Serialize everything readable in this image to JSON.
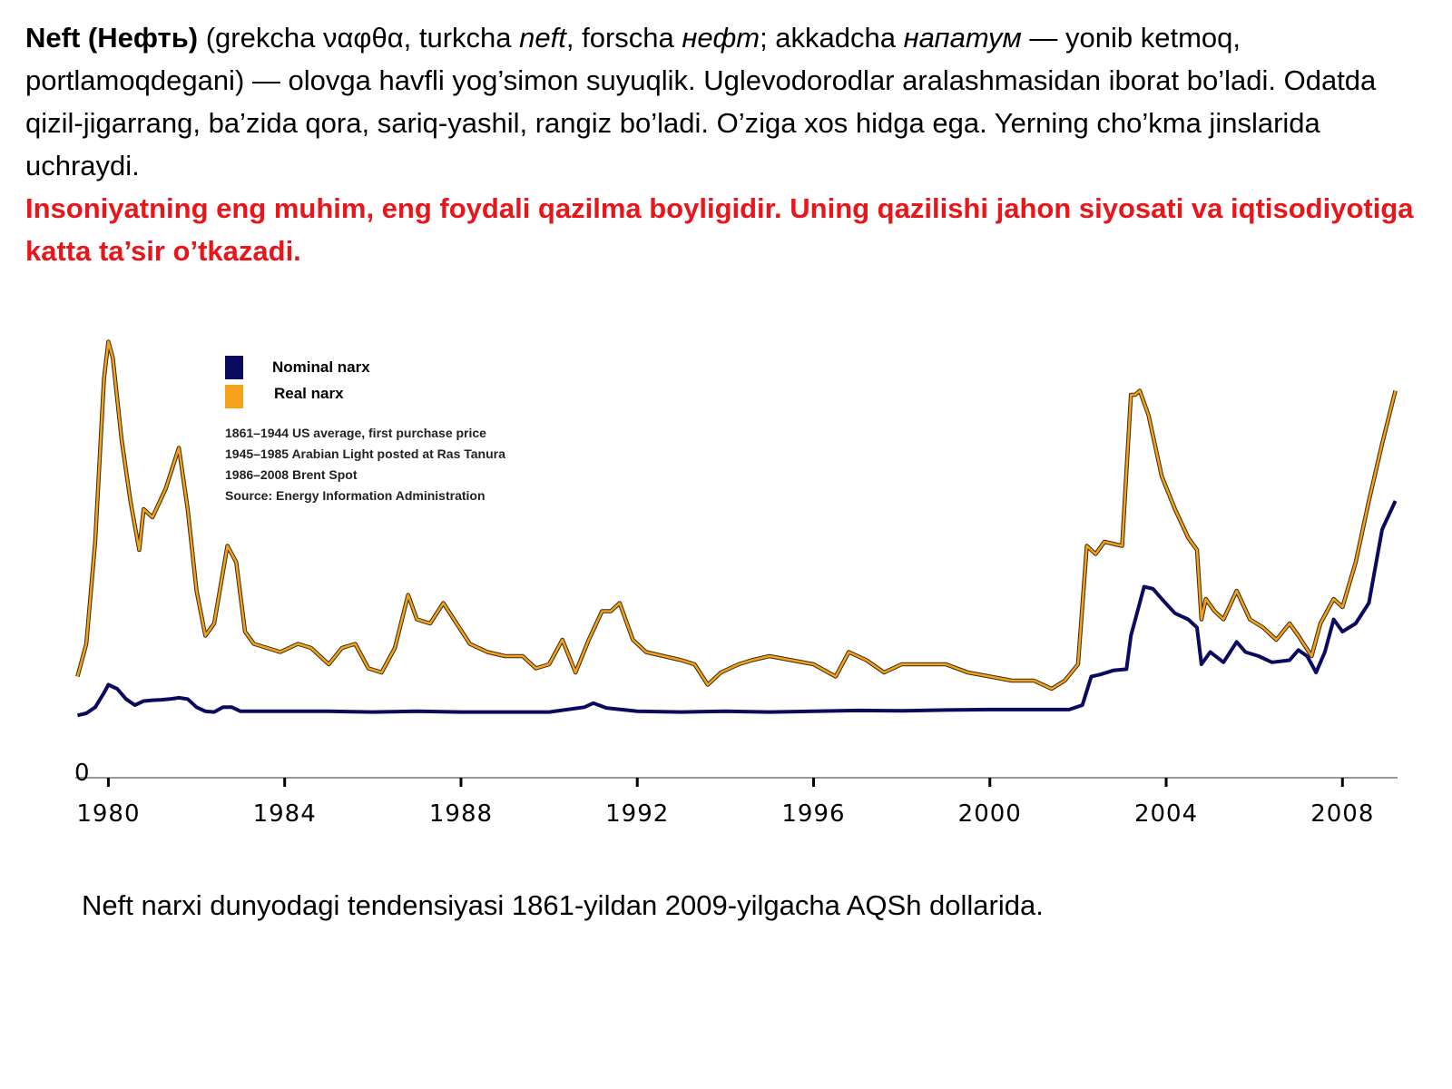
{
  "intro": {
    "term": "Neft (Нефть)",
    "p1": " (grekcha ναφθα, turkcha ",
    "i1": "neft",
    "p2": ", forscha ",
    "i2": "нефт",
    "p3": "; akkadcha ",
    "i3": "напатум",
    "p4": " — yonib ketmoq, portlamoqdegani) — olovga havfli yog’simon suyuqlik. Uglevodorodlar aralashmasidan iborat bo’ladi. Odatda qizil-jigarrang, ba’zida qora, sariq-yashil, rangiz bo’ladi. O’ziga xos hidga ega. Yerning cho’kma jinslarida uchraydi.",
    "highlight": "Insoniyatning eng muhim, eng foydali qazilma boyligidir. Uning qazilishi jahon siyosati va iqtisodiyotiga katta ta’sir o’tkazadi.",
    "highlight_color": "#e8151b"
  },
  "caption": "Neft narxi dunyodagi tendensiyasi 1861-yildan 2009-yilgacha AQSh dollarida.",
  "chart_data": {
    "type": "line",
    "title": "",
    "xlabel": "",
    "ylabel": "",
    "xlim": [
      1979.25,
      2009.25
    ],
    "ylim": [
      0,
      100
    ],
    "x_ticks": [
      1980,
      1984,
      1988,
      1992,
      1996,
      2000,
      2004,
      2008
    ],
    "x_tick_labels": [
      "1980",
      "1984",
      "1988",
      "1992",
      "1996",
      "2000",
      "2004",
      "2008"
    ],
    "y_tick_labels": [
      "0"
    ],
    "grid": false,
    "legend_position": "top-left",
    "notes": [
      "1861–1944 US average, first purchase price",
      "1945–1985 Arabian Light posted at Ras Tanura",
      "1986–2008 Brent Spot",
      "Source: Energy Information Administration"
    ],
    "series": [
      {
        "name": "Nominal narx",
        "color": "#0a0a5e",
        "x": [
          1979.3,
          1979.5,
          1979.7,
          1979.9,
          1980.0,
          1980.2,
          1980.4,
          1980.6,
          1980.8,
          1981.0,
          1981.2,
          1981.4,
          1981.6,
          1981.8,
          1982.0,
          1982.2,
          1982.4,
          1982.6,
          1982.8,
          1983.0,
          1984.0,
          1985.0,
          1986.0,
          1987.0,
          1988.0,
          1989.0,
          1990.0,
          1990.8,
          1991.0,
          1991.3,
          1992.0,
          1993.0,
          1994.0,
          1995.0,
          1996.0,
          1997.0,
          1998.0,
          1999.0,
          2000.0,
          2001.0,
          2001.8,
          2002.1,
          2002.3,
          2002.5,
          2002.8,
          2003.1,
          2003.2,
          2003.4,
          2003.5,
          2003.7,
          2003.9,
          2004.2,
          2004.5,
          2004.7,
          2004.8,
          2005.0,
          2005.3,
          2005.6,
          2005.8,
          2006.1,
          2006.4,
          2006.8,
          2007.0,
          2007.2,
          2007.4,
          2007.6,
          2007.8,
          2008.0,
          2008.3,
          2008.6,
          2008.9,
          2009.2
        ],
        "y": [
          7.5,
          8,
          9.5,
          13,
          15,
          14,
          11.5,
          10,
          11,
          11.2,
          11.3,
          11.5,
          11.8,
          11.5,
          9.5,
          8.5,
          8.3,
          9.5,
          9.5,
          8.5,
          8.5,
          8.5,
          8.3,
          8.5,
          8.3,
          8.3,
          8.3,
          9.5,
          10.5,
          9.3,
          8.5,
          8.3,
          8.5,
          8.3,
          8.5,
          8.7,
          8.6,
          8.8,
          8.9,
          8.9,
          8.9,
          10,
          17,
          17.5,
          18.5,
          18.8,
          27,
          35,
          39,
          38.5,
          36,
          32.5,
          31,
          29,
          20,
          23,
          20.5,
          25.5,
          23,
          22,
          20.5,
          21,
          23.5,
          22,
          18,
          23,
          31,
          28,
          30,
          35,
          53,
          60
        ]
      },
      {
        "name": "Real narx",
        "color": "#f4a11b",
        "x": [
          1979.3,
          1979.5,
          1979.7,
          1979.9,
          1980.0,
          1980.1,
          1980.3,
          1980.5,
          1980.7,
          1980.8,
          1981.0,
          1981.3,
          1981.6,
          1981.8,
          1982.0,
          1982.2,
          1982.4,
          1982.7,
          1982.9,
          1983.1,
          1983.3,
          1983.6,
          1983.9,
          1984.3,
          1984.6,
          1985.0,
          1985.3,
          1985.6,
          1985.9,
          1986.2,
          1986.5,
          1986.8,
          1987.0,
          1987.3,
          1987.6,
          1987.9,
          1988.2,
          1988.6,
          1989.0,
          1989.4,
          1989.7,
          1990.0,
          1990.3,
          1990.6,
          1990.9,
          1991.2,
          1991.4,
          1991.6,
          1991.9,
          1992.2,
          1992.6,
          1993.0,
          1993.3,
          1993.6,
          1993.9,
          1994.3,
          1994.6,
          1995.0,
          1995.5,
          1996.0,
          1996.5,
          1996.8,
          1997.2,
          1997.6,
          1998.0,
          1998.5,
          1999.0,
          1999.5,
          2000.0,
          2000.5,
          2001.0,
          2001.4,
          2001.7,
          2002.0,
          2002.2,
          2002.4,
          2002.6,
          2003.0,
          2003.2,
          2003.3,
          2003.4,
          2003.6,
          2003.9,
          2004.2,
          2004.5,
          2004.7,
          2004.8,
          2004.9,
          2005.1,
          2005.3,
          2005.6,
          2005.9,
          2006.2,
          2006.5,
          2006.8,
          2007.0,
          2007.3,
          2007.5,
          2007.8,
          2008.0,
          2008.3,
          2008.6,
          2008.9,
          2009.2
        ],
        "y": [
          17,
          25,
          50,
          90,
          99,
          95,
          75,
          60,
          48,
          58,
          56,
          63,
          73,
          58,
          38,
          27,
          30,
          49,
          45,
          28,
          25,
          24,
          23,
          25,
          24,
          20,
          24,
          25,
          19,
          18,
          24,
          37,
          31,
          30,
          35,
          30,
          25,
          23,
          22,
          22,
          19,
          20,
          26,
          18,
          26,
          33,
          33,
          35,
          26,
          23,
          22,
          21,
          20,
          15,
          18,
          20,
          21,
          22,
          21,
          20,
          17,
          23,
          21,
          18,
          20,
          20,
          20,
          18,
          17,
          16,
          16,
          14,
          16,
          20,
          49,
          47,
          50,
          49,
          86,
          86,
          87,
          81,
          66,
          58,
          51,
          48,
          31,
          36,
          33,
          31,
          38,
          31,
          29,
          26,
          30,
          27,
          22,
          30,
          36,
          34,
          45,
          60,
          74,
          87
        ]
      }
    ]
  }
}
